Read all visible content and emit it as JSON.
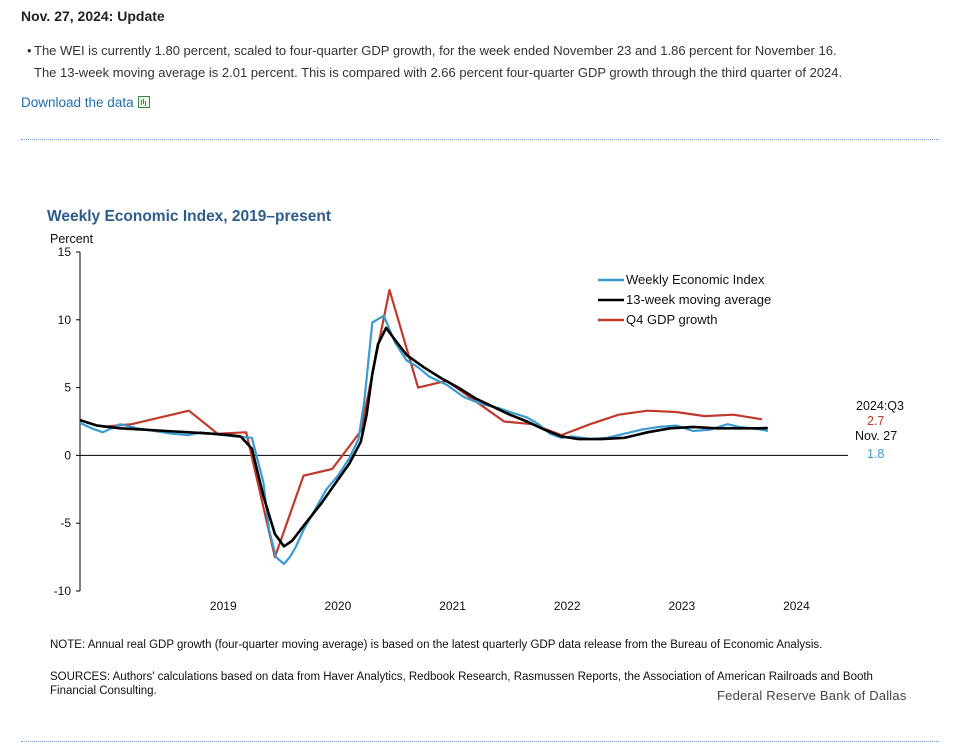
{
  "update": {
    "title": "Nov. 27, 2024: Update",
    "bullet_line1": "The WEI is currently 1.80 percent, scaled to four-quarter GDP growth, for the week ended November 23 and 1.86 percent for November 16.",
    "bullet_line2": "The 13-week moving average is 2.01 percent. This is compared with 2.66 percent four-quarter GDP growth through the third quarter of 2024."
  },
  "download_label": "Download the data",
  "colors": {
    "wei": "#3a9bd0",
    "ma": "#000000",
    "gdp": "#c0392b",
    "title": "#2e5c8a",
    "link": "#1f6fa8"
  },
  "chart_data": {
    "type": "line",
    "title": "Weekly Economic Index, 2019–present",
    "ylabel": "Percent",
    "xlabel": "",
    "ylim": [
      -10,
      15
    ],
    "xlim": [
      2018.25,
      2024.95
    ],
    "yticks": [
      "15",
      "10",
      "5",
      "0",
      "-5",
      "-10"
    ],
    "xticks": [
      "2019",
      "2020",
      "2021",
      "2022",
      "2023",
      "2024"
    ],
    "legend_position": "top-right",
    "series": [
      {
        "name": "Weekly Economic Index",
        "x": [
          2018.25,
          2018.35,
          2018.45,
          2018.6,
          2018.75,
          2018.9,
          2019.05,
          2019.2,
          2019.3,
          2019.4,
          2019.5,
          2019.6,
          2019.75,
          2019.85,
          2019.9,
          2019.96,
          2020.03,
          2020.08,
          2020.13,
          2020.2,
          2020.3,
          2020.4,
          2020.5,
          2020.6,
          2020.68,
          2020.73,
          2020.8,
          2020.9,
          2021.0,
          2021.1,
          2021.2,
          2021.3,
          2021.45,
          2021.6,
          2021.75,
          2021.9,
          2022.0,
          2022.15,
          2022.25,
          2022.35,
          2022.45,
          2022.55,
          2022.7,
          2022.85,
          2023.0,
          2023.15,
          2023.3,
          2023.45,
          2023.6,
          2023.75,
          2023.9,
          2024.0,
          2024.1,
          2024.2,
          2024.25
        ],
        "y": [
          2.4,
          2.0,
          1.7,
          2.3,
          2.0,
          1.8,
          1.6,
          1.5,
          1.7,
          1.6,
          1.5,
          1.4,
          1.3,
          -2.0,
          -5.5,
          -7.5,
          -8.0,
          -7.5,
          -6.8,
          -5.5,
          -4.0,
          -2.5,
          -1.5,
          -0.2,
          1.2,
          4.0,
          9.8,
          10.3,
          8.3,
          7.0,
          6.5,
          5.8,
          5.2,
          4.3,
          3.8,
          3.5,
          3.2,
          2.8,
          2.3,
          1.6,
          1.3,
          1.4,
          1.2,
          1.3,
          1.6,
          1.9,
          2.1,
          2.2,
          1.8,
          1.9,
          2.3,
          2.1,
          2.0,
          1.9,
          1.8
        ]
      },
      {
        "name": "13-week moving average",
        "x": [
          2018.25,
          2018.4,
          2018.6,
          2018.8,
          2019.0,
          2019.2,
          2019.4,
          2019.55,
          2019.65,
          2019.75,
          2019.85,
          2019.95,
          2020.03,
          2020.1,
          2020.2,
          2020.35,
          2020.5,
          2020.6,
          2020.7,
          2020.75,
          2020.8,
          2020.85,
          2020.92,
          2021.0,
          2021.1,
          2021.25,
          2021.4,
          2021.55,
          2021.7,
          2021.85,
          2022.0,
          2022.15,
          2022.3,
          2022.45,
          2022.6,
          2022.8,
          2023.0,
          2023.2,
          2023.4,
          2023.6,
          2023.8,
          2024.0,
          2024.15,
          2024.25
        ],
        "y": [
          2.6,
          2.2,
          2.0,
          1.9,
          1.8,
          1.7,
          1.6,
          1.5,
          1.4,
          0.5,
          -3.0,
          -5.8,
          -6.7,
          -6.3,
          -5.2,
          -3.6,
          -1.8,
          -0.6,
          1.0,
          3.0,
          6.0,
          8.2,
          9.4,
          8.5,
          7.4,
          6.5,
          5.7,
          5.0,
          4.2,
          3.6,
          3.0,
          2.5,
          1.9,
          1.4,
          1.2,
          1.2,
          1.3,
          1.7,
          2.0,
          2.1,
          2.0,
          2.0,
          2.0,
          2.01
        ]
      },
      {
        "name": "Q4 GDP growth",
        "x": [
          2018.45,
          2018.7,
          2018.95,
          2019.2,
          2019.45,
          2019.7,
          2019.95,
          2020.2,
          2020.45,
          2020.7,
          2020.95,
          2021.2,
          2021.45,
          2021.7,
          2021.95,
          2022.2,
          2022.45,
          2022.7,
          2022.95,
          2023.2,
          2023.45,
          2023.7,
          2023.95,
          2024.2
        ],
        "y": [
          2.1,
          2.3,
          2.8,
          3.3,
          1.6,
          1.7,
          -7.5,
          -1.5,
          -1.0,
          1.8,
          12.2,
          5.0,
          5.5,
          4.0,
          2.5,
          2.3,
          1.5,
          2.3,
          3.0,
          3.3,
          3.2,
          2.9,
          3.0,
          2.66
        ]
      }
    ],
    "annotations": {
      "gdp_period": "2024:Q3",
      "gdp_value": "2.7",
      "wei_date": "Nov. 27",
      "wei_value": "1.8"
    }
  },
  "notes": {
    "note": "NOTE: Annual real GDP growth (four-quarter moving average) is based on the latest quarterly GDP data release from the Bureau of Economic Analysis.",
    "sources": "SOURCES: Authors' calculations based on data from Haver Analytics, Redbook Research, Rasmussen Reports, the Association of American Railroads and Booth Financial Consulting.",
    "credit": "Federal Reserve Bank of Dallas"
  }
}
